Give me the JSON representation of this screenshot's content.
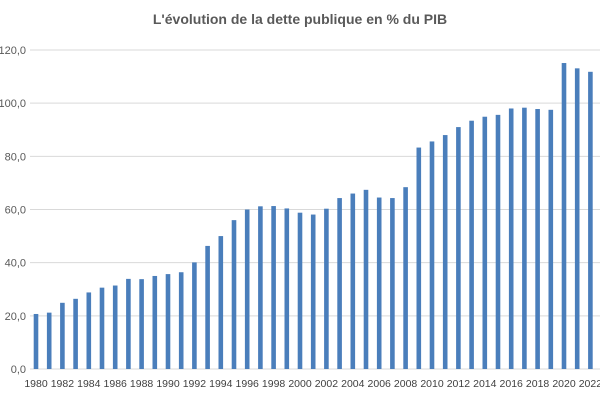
{
  "chart_data": {
    "type": "bar",
    "title": "L'évolution de la dette publique en % du PIB",
    "xlabel": "",
    "ylabel": "",
    "ylim": [
      0,
      120
    ],
    "grid": true,
    "legend": "none",
    "bar_color": "#4a7ebb",
    "grid_color": "#d9d9d9",
    "y_ticks": [
      "0,0",
      "20,0",
      "40,0",
      "60,0",
      "80,0",
      "100,0",
      "120,0"
    ],
    "y_tick_values": [
      0,
      20,
      40,
      60,
      80,
      100,
      120
    ],
    "categories": [
      "1980",
      "1981",
      "1982",
      "1983",
      "1984",
      "1985",
      "1986",
      "1987",
      "1988",
      "1989",
      "1990",
      "1991",
      "1992",
      "1993",
      "1994",
      "1995",
      "1996",
      "1997",
      "1998",
      "1999",
      "2000",
      "2001",
      "2002",
      "2003",
      "2004",
      "2005",
      "2006",
      "2007",
      "2008",
      "2009",
      "2010",
      "2011",
      "2012",
      "2013",
      "2014",
      "2015",
      "2016",
      "2017",
      "2018",
      "2019",
      "2020",
      "2021",
      "2022"
    ],
    "x_tick_labels": [
      "1980",
      "1982",
      "1984",
      "1986",
      "1988",
      "1990",
      "1992",
      "1994",
      "1996",
      "1998",
      "2000",
      "2002",
      "2004",
      "2006",
      "2008",
      "2010",
      "2012",
      "2014",
      "2016",
      "2018",
      "2020",
      "2022"
    ],
    "values": [
      20.7,
      21.2,
      24.9,
      26.4,
      28.8,
      30.6,
      31.4,
      33.9,
      33.8,
      35.0,
      35.7,
      36.4,
      40.1,
      46.3,
      50.0,
      56.0,
      60.0,
      61.2,
      61.3,
      60.4,
      58.8,
      58.1,
      60.3,
      64.3,
      66.0,
      67.4,
      64.5,
      64.3,
      68.4,
      83.3,
      85.6,
      88.0,
      91.0,
      93.4,
      94.9,
      95.6,
      98.0,
      98.3,
      97.8,
      97.5,
      115.1,
      113.1,
      111.8
    ]
  }
}
